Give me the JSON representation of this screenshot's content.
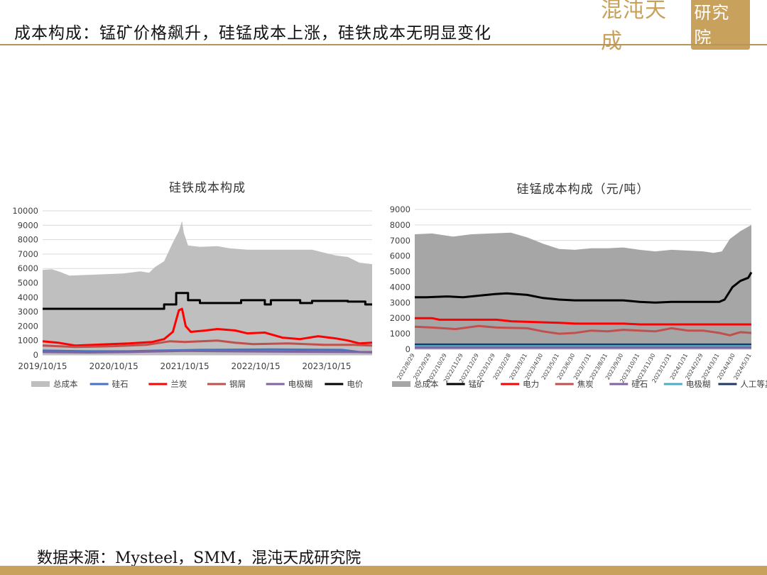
{
  "header": {
    "title": "成本构成：锰矿价格飙升，硅锰成本上涨，硅铁成本无明显变化",
    "logo_part1": "混沌天成",
    "logo_part2": "研究院"
  },
  "source_text": "数据来源：Mysteel，SMM，混沌天成研究院",
  "colors": {
    "total": "#bfbfbf",
    "total_dark": "#a6a6a6",
    "black": "#000000",
    "red": "#ff0000",
    "salmon": "#c0504d",
    "blue": "#4472c4",
    "purple": "#8064a2",
    "teal": "#4bacc6",
    "navy": "#1f3864",
    "accent": "#c8a25c"
  },
  "chart_data": [
    {
      "type": "area",
      "title": "硅铁成本构成",
      "xlabel": "",
      "ylabel": "",
      "ylim": [
        0,
        10000
      ],
      "y_ticks": [
        "0",
        "1000",
        "2000",
        "3000",
        "4000",
        "5000",
        "6000",
        "7000",
        "8000",
        "9000",
        "10000"
      ],
      "x_range": [
        "2019-10-15",
        "2024-06-05"
      ],
      "x_ticks": [
        "2019/10/15",
        "2020/10/15",
        "2021/10/15",
        "2022/10/15",
        "2023/10/15"
      ],
      "x_tick_dates": [
        "2019-10-15",
        "2020-10-15",
        "2021-10-15",
        "2022-10-15",
        "2023-10-15"
      ],
      "grid": true,
      "legend_position": "bottom",
      "legend": [
        "总成本",
        "硅石",
        "兰炭",
        "钢屑",
        "电极糊",
        "电价"
      ],
      "series": [
        {
          "name": "总成本",
          "style": "area",
          "color": "#bfbfbf",
          "points": [
            [
              "2019-10-15",
              5900
            ],
            [
              "2019-12-01",
              5950
            ],
            [
              "2020-01-15",
              5750
            ],
            [
              "2020-03-01",
              5500
            ],
            [
              "2020-06-01",
              5550
            ],
            [
              "2020-09-01",
              5600
            ],
            [
              "2020-12-01",
              5650
            ],
            [
              "2021-03-01",
              5800
            ],
            [
              "2021-04-15",
              5700
            ],
            [
              "2021-05-15",
              6100
            ],
            [
              "2021-07-01",
              6500
            ],
            [
              "2021-08-15",
              7800
            ],
            [
              "2021-09-15",
              8600
            ],
            [
              "2021-10-01",
              9300
            ],
            [
              "2021-10-10",
              8500
            ],
            [
              "2021-11-01",
              7600
            ],
            [
              "2022-01-01",
              7500
            ],
            [
              "2022-04-01",
              7550
            ],
            [
              "2022-06-01",
              7400
            ],
            [
              "2022-09-01",
              7300
            ],
            [
              "2023-03-01",
              7300
            ],
            [
              "2023-08-01",
              7300
            ],
            [
              "2023-10-01",
              7100
            ],
            [
              "2023-12-01",
              6900
            ],
            [
              "2024-02-01",
              6800
            ],
            [
              "2024-04-01",
              6400
            ],
            [
              "2024-06-05",
              6300
            ]
          ]
        },
        {
          "name": "电价",
          "style": "step",
          "color": "#000000",
          "points": [
            [
              "2019-10-15",
              3200
            ],
            [
              "2021-07-01",
              3200
            ],
            [
              "2021-07-01",
              3500
            ],
            [
              "2021-09-01",
              3500
            ],
            [
              "2021-09-01",
              4300
            ],
            [
              "2021-11-01",
              4300
            ],
            [
              "2021-11-01",
              3800
            ],
            [
              "2022-01-01",
              3800
            ],
            [
              "2022-01-01",
              3600
            ],
            [
              "2022-08-01",
              3600
            ],
            [
              "2022-08-01",
              3800
            ],
            [
              "2022-12-01",
              3800
            ],
            [
              "2022-12-01",
              3500
            ],
            [
              "2023-01-01",
              3500
            ],
            [
              "2023-01-01",
              3800
            ],
            [
              "2023-06-01",
              3800
            ],
            [
              "2023-06-01",
              3600
            ],
            [
              "2023-08-01",
              3600
            ],
            [
              "2023-08-01",
              3750
            ],
            [
              "2024-02-01",
              3750
            ],
            [
              "2024-02-01",
              3700
            ],
            [
              "2024-05-01",
              3700
            ],
            [
              "2024-05-01",
              3500
            ],
            [
              "2024-06-05",
              3500
            ]
          ]
        },
        {
          "name": "兰炭",
          "style": "line",
          "color": "#ff0000",
          "points": [
            [
              "2019-10-15",
              950
            ],
            [
              "2020-01-01",
              850
            ],
            [
              "2020-04-01",
              650
            ],
            [
              "2020-07-01",
              700
            ],
            [
              "2020-10-01",
              750
            ],
            [
              "2021-01-01",
              800
            ],
            [
              "2021-05-01",
              900
            ],
            [
              "2021-07-01",
              1100
            ],
            [
              "2021-08-15",
              1600
            ],
            [
              "2021-09-15",
              3100
            ],
            [
              "2021-10-01",
              3200
            ],
            [
              "2021-10-20",
              2000
            ],
            [
              "2021-11-15",
              1600
            ],
            [
              "2022-02-01",
              1700
            ],
            [
              "2022-04-01",
              1800
            ],
            [
              "2022-07-01",
              1700
            ],
            [
              "2022-09-01",
              1500
            ],
            [
              "2022-12-01",
              1550
            ],
            [
              "2023-03-01",
              1200
            ],
            [
              "2023-06-01",
              1100
            ],
            [
              "2023-09-01",
              1300
            ],
            [
              "2023-12-01",
              1150
            ],
            [
              "2024-02-01",
              1000
            ],
            [
              "2024-04-01",
              800
            ],
            [
              "2024-06-05",
              850
            ]
          ]
        },
        {
          "name": "钢屑",
          "style": "line",
          "color": "#c0504d",
          "points": [
            [
              "2019-10-15",
              650
            ],
            [
              "2020-04-01",
              550
            ],
            [
              "2020-10-01",
              600
            ],
            [
              "2021-04-01",
              700
            ],
            [
              "2021-08-01",
              950
            ],
            [
              "2021-10-15",
              900
            ],
            [
              "2022-04-01",
              1000
            ],
            [
              "2022-07-01",
              850
            ],
            [
              "2022-10-01",
              750
            ],
            [
              "2023-04-01",
              800
            ],
            [
              "2023-10-01",
              700
            ],
            [
              "2024-03-01",
              700
            ],
            [
              "2024-06-05",
              650
            ]
          ]
        },
        {
          "name": "硅石",
          "style": "line",
          "color": "#4472c4",
          "points": [
            [
              "2019-10-15",
              300
            ],
            [
              "2020-06-01",
              250
            ],
            [
              "2021-01-01",
              250
            ],
            [
              "2021-06-01",
              300
            ],
            [
              "2022-01-01",
              350
            ],
            [
              "2023-01-01",
              380
            ],
            [
              "2024-01-01",
              350
            ],
            [
              "2024-04-01",
              200
            ],
            [
              "2024-06-05",
              180
            ]
          ]
        },
        {
          "name": "电极糊",
          "style": "line",
          "color": "#8064a2",
          "points": [
            [
              "2019-10-15",
              200
            ],
            [
              "2020-06-01",
              170
            ],
            [
              "2021-01-01",
              200
            ],
            [
              "2021-10-01",
              280
            ],
            [
              "2022-06-01",
              250
            ],
            [
              "2023-06-01",
              220
            ],
            [
              "2024-06-05",
              200
            ]
          ]
        }
      ]
    },
    {
      "type": "area",
      "title": "硅锰成本构成（元/吨）",
      "xlabel": "",
      "ylabel": "",
      "ylim": [
        0,
        9000
      ],
      "y_ticks": [
        "0",
        "1000",
        "2000",
        "3000",
        "4000",
        "5000",
        "6000",
        "7000",
        "8000",
        "9000"
      ],
      "x_range": [
        "2022-08-29",
        "2024-05-31"
      ],
      "x_ticks": [
        "2022/8/29",
        "2022/9/29",
        "2022/10/29",
        "2022/11/29",
        "2022/12/29",
        "2023/1/29",
        "2023/2/28",
        "2023/3/31",
        "2023/4/30",
        "2023/5/31",
        "2023/6/30",
        "2023/7/31",
        "2023/8/31",
        "2023/9/30",
        "2023/10/31",
        "2023/11/30",
        "2023/12/31",
        "2024/1/31",
        "2024/2/29",
        "2024/3/31",
        "2024/4/30",
        "2024/5/31"
      ],
      "x_tick_dates": [
        "2022-08-29",
        "2022-09-29",
        "2022-10-29",
        "2022-11-29",
        "2022-12-29",
        "2023-01-29",
        "2023-02-28",
        "2023-03-31",
        "2023-04-30",
        "2023-05-31",
        "2023-06-30",
        "2023-07-31",
        "2023-08-31",
        "2023-09-30",
        "2023-10-31",
        "2023-11-30",
        "2023-12-31",
        "2024-01-31",
        "2024-02-29",
        "2024-03-31",
        "2024-04-30",
        "2024-05-31"
      ],
      "grid": true,
      "legend_position": "bottom",
      "legend": [
        "总成本",
        "锰矿",
        "电力",
        "焦炭",
        "硅石",
        "电极糊",
        "人工等其他费用"
      ],
      "series": [
        {
          "name": "总成本",
          "style": "area",
          "color": "#a6a6a6",
          "points": [
            [
              "2022-08-29",
              7400
            ],
            [
              "2022-10-01",
              7450
            ],
            [
              "2022-11-10",
              7250
            ],
            [
              "2022-12-15",
              7400
            ],
            [
              "2023-01-20",
              7450
            ],
            [
              "2023-02-28",
              7500
            ],
            [
              "2023-03-31",
              7200
            ],
            [
              "2023-04-30",
              6800
            ],
            [
              "2023-05-31",
              6450
            ],
            [
              "2023-06-30",
              6400
            ],
            [
              "2023-07-31",
              6500
            ],
            [
              "2023-08-31",
              6500
            ],
            [
              "2023-09-30",
              6550
            ],
            [
              "2023-10-31",
              6400
            ],
            [
              "2023-11-30",
              6300
            ],
            [
              "2023-12-31",
              6400
            ],
            [
              "2024-01-31",
              6350
            ],
            [
              "2024-02-29",
              6300
            ],
            [
              "2024-03-20",
              6200
            ],
            [
              "2024-04-05",
              6300
            ],
            [
              "2024-04-20",
              7100
            ],
            [
              "2024-05-10",
              7600
            ],
            [
              "2024-05-31",
              8000
            ]
          ]
        },
        {
          "name": "锰矿",
          "style": "line",
          "color": "#000000",
          "points": [
            [
              "2022-08-29",
              3350
            ],
            [
              "2022-09-20",
              3350
            ],
            [
              "2022-10-29",
              3400
            ],
            [
              "2022-11-29",
              3350
            ],
            [
              "2022-12-29",
              3450
            ],
            [
              "2023-01-29",
              3550
            ],
            [
              "2023-02-20",
              3600
            ],
            [
              "2023-03-31",
              3500
            ],
            [
              "2023-04-30",
              3300
            ],
            [
              "2023-05-31",
              3200
            ],
            [
              "2023-06-30",
              3150
            ],
            [
              "2023-07-31",
              3150
            ],
            [
              "2023-08-31",
              3150
            ],
            [
              "2023-09-30",
              3150
            ],
            [
              "2023-10-31",
              3050
            ],
            [
              "2023-11-30",
              3000
            ],
            [
              "2023-12-31",
              3050
            ],
            [
              "2024-01-31",
              3050
            ],
            [
              "2024-02-29",
              3050
            ],
            [
              "2024-03-31",
              3050
            ],
            [
              "2024-04-10",
              3200
            ],
            [
              "2024-04-25",
              4000
            ],
            [
              "2024-05-10",
              4400
            ],
            [
              "2024-05-25",
              4600
            ],
            [
              "2024-05-31",
              4950
            ]
          ]
        },
        {
          "name": "电力",
          "style": "line",
          "color": "#ff0000",
          "points": [
            [
              "2022-08-29",
              2000
            ],
            [
              "2022-10-01",
              2000
            ],
            [
              "2022-10-15",
              1900
            ],
            [
              "2023-02-01",
              1900
            ],
            [
              "2023-03-01",
              1800
            ],
            [
              "2023-06-01",
              1700
            ],
            [
              "2023-07-01",
              1650
            ],
            [
              "2023-10-01",
              1650
            ],
            [
              "2023-11-01",
              1600
            ],
            [
              "2024-05-31",
              1600
            ]
          ]
        },
        {
          "name": "焦炭",
          "style": "line",
          "color": "#c0504d",
          "points": [
            [
              "2022-08-29",
              1450
            ],
            [
              "2022-10-01",
              1400
            ],
            [
              "2022-11-15",
              1300
            ],
            [
              "2022-12-29",
              1500
            ],
            [
              "2023-02-01",
              1400
            ],
            [
              "2023-03-31",
              1350
            ],
            [
              "2023-04-30",
              1150
            ],
            [
              "2023-05-31",
              1000
            ],
            [
              "2023-06-30",
              1050
            ],
            [
              "2023-07-31",
              1200
            ],
            [
              "2023-08-31",
              1150
            ],
            [
              "2023-09-30",
              1250
            ],
            [
              "2023-10-31",
              1200
            ],
            [
              "2023-11-30",
              1150
            ],
            [
              "2023-12-31",
              1350
            ],
            [
              "2024-01-31",
              1200
            ],
            [
              "2024-02-29",
              1200
            ],
            [
              "2024-03-31",
              1050
            ],
            [
              "2024-04-20",
              900
            ],
            [
              "2024-05-10",
              1100
            ],
            [
              "2024-05-31",
              1050
            ]
          ]
        },
        {
          "name": "人工等其他费用",
          "style": "line",
          "color": "#1f3864",
          "points": [
            [
              "2022-08-29",
              300
            ],
            [
              "2024-05-31",
              300
            ]
          ]
        },
        {
          "name": "电极糊",
          "style": "line",
          "color": "#4bacc6",
          "points": [
            [
              "2022-08-29",
              200
            ],
            [
              "2024-05-31",
              200
            ]
          ]
        },
        {
          "name": "硅石",
          "style": "line",
          "color": "#8064a2",
          "points": [
            [
              "2022-08-29",
              100
            ],
            [
              "2024-05-31",
              100
            ]
          ]
        }
      ]
    }
  ]
}
